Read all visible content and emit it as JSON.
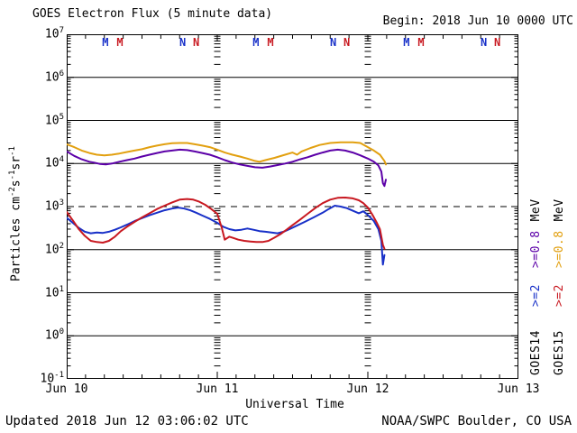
{
  "header": {
    "title": "GOES Electron Flux (5 minute data)",
    "begin": "Begin: 2018 Jun 10 0000 UTC"
  },
  "footer": {
    "updated": "Updated 2018 Jun 12 03:06:02 UTC",
    "credit": "NOAA/SWPC Boulder, CO USA"
  },
  "colors": {
    "goes14_08": "#5C00A8",
    "goes15_08": "#E2A010",
    "goes14_2": "#1830C8",
    "goes15_2": "#C81820",
    "frame": "#000000",
    "background": "#FFFFFF"
  },
  "y_axis": {
    "base": "10",
    "exponents": [
      "7",
      "6",
      "5",
      "4",
      "3",
      "2",
      "1",
      "0",
      "-1"
    ],
    "unit_segments": [
      {
        "text": "Particles cm"
      },
      {
        "text": "-2",
        "sup": true
      },
      {
        "text": "s"
      },
      {
        "text": "-1",
        "sup": true
      },
      {
        "text": "sr"
      },
      {
        "text": "-1",
        "sup": true
      }
    ]
  },
  "x_axis": {
    "label": "Universal Time",
    "ticks": [
      "Jun 10",
      "Jun 11",
      "Jun 12",
      "Jun 13"
    ]
  },
  "right_legend": {
    "columns": [
      {
        "satellite": "GOES14",
        "thresholds": [
          {
            "label": ">=2",
            "color_key": "goes14_2"
          },
          {
            "label": ">=0.8",
            "color_key": "goes14_08"
          }
        ],
        "unit": "MeV"
      },
      {
        "satellite": "GOES15",
        "thresholds": [
          {
            "label": ">=2",
            "color_key": "goes15_2"
          },
          {
            "label": ">=0.8",
            "color_key": "goes15_08"
          }
        ],
        "unit": "MeV"
      }
    ]
  },
  "local_time_markers": {
    "midnight_letter": "M",
    "noon_letter": "N",
    "items": [
      {
        "letter": "M",
        "color_key": "goes14_2",
        "day": 0.257
      },
      {
        "letter": "M",
        "color_key": "goes15_2",
        "day": 0.353
      },
      {
        "letter": "N",
        "color_key": "goes14_2",
        "day": 0.77
      },
      {
        "letter": "N",
        "color_key": "goes15_2",
        "day": 0.86
      },
      {
        "letter": "M",
        "color_key": "goes14_2",
        "day": 1.257
      },
      {
        "letter": "M",
        "color_key": "goes15_2",
        "day": 1.353
      },
      {
        "letter": "N",
        "color_key": "goes14_2",
        "day": 1.77
      },
      {
        "letter": "N",
        "color_key": "goes15_2",
        "day": 1.86
      },
      {
        "letter": "M",
        "color_key": "goes14_2",
        "day": 2.257
      },
      {
        "letter": "M",
        "color_key": "goes15_2",
        "day": 2.353
      },
      {
        "letter": "N",
        "color_key": "goes14_2",
        "day": 2.77
      },
      {
        "letter": "N",
        "color_key": "goes15_2",
        "day": 2.86
      }
    ]
  },
  "chart_data": {
    "type": "line",
    "title": "GOES Electron Flux (5 minute data)",
    "xlabel": "Universal Time",
    "ylabel": "Particles cm^-2 s^-1 sr^-1",
    "y_scale": "log",
    "ylim": [
      0.1,
      10000000
    ],
    "xlim_days": [
      0,
      3
    ],
    "x_origin": "2018 Jun 10 0000 UTC",
    "x_tick_labels": [
      "Jun 10",
      "Jun 11",
      "Jun 12",
      "Jun 13"
    ],
    "grid": "solid horizontal lines each decade; dashed line at 1e3; minor log tick columns at day boundaries",
    "threshold_dashed_line": 1000,
    "series": [
      {
        "name": "GOES15 >=0.8 MeV",
        "satellite": "GOES15",
        "energy": ">=0.8 MeV",
        "color_key": "goes15_08",
        "points": [
          [
            0,
            28000
          ],
          [
            0.05,
            24000
          ],
          [
            0.1,
            20000
          ],
          [
            0.15,
            17500
          ],
          [
            0.2,
            16000
          ],
          [
            0.25,
            15500
          ],
          [
            0.3,
            16000
          ],
          [
            0.35,
            17000
          ],
          [
            0.4,
            18500
          ],
          [
            0.45,
            20000
          ],
          [
            0.5,
            21500
          ],
          [
            0.55,
            24000
          ],
          [
            0.6,
            26000
          ],
          [
            0.65,
            28000
          ],
          [
            0.7,
            29500
          ],
          [
            0.75,
            30000
          ],
          [
            0.8,
            30000
          ],
          [
            0.85,
            28000
          ],
          [
            0.9,
            26000
          ],
          [
            0.95,
            24000
          ],
          [
            1,
            21000
          ],
          [
            1.05,
            18000
          ],
          [
            1.1,
            16000
          ],
          [
            1.15,
            14500
          ],
          [
            1.2,
            13000
          ],
          [
            1.25,
            11500
          ],
          [
            1.28,
            11000
          ],
          [
            1.32,
            12000
          ],
          [
            1.38,
            13500
          ],
          [
            1.45,
            16000
          ],
          [
            1.5,
            18000
          ],
          [
            1.53,
            16000
          ],
          [
            1.56,
            19000
          ],
          [
            1.62,
            23000
          ],
          [
            1.68,
            27000
          ],
          [
            1.75,
            30000
          ],
          [
            1.82,
            31000
          ],
          [
            1.9,
            31000
          ],
          [
            1.95,
            30000
          ],
          [
            2,
            24000
          ],
          [
            2.04,
            20000
          ],
          [
            2.08,
            16000
          ],
          [
            2.11,
            11500
          ],
          [
            2.12,
            9500
          ]
        ]
      },
      {
        "name": "GOES14 >=0.8 MeV",
        "satellite": "GOES14",
        "energy": ">=0.8 MeV",
        "color_key": "goes14_08",
        "points": [
          [
            0,
            19000
          ],
          [
            0.05,
            15000
          ],
          [
            0.1,
            12500
          ],
          [
            0.15,
            11000
          ],
          [
            0.18,
            10500
          ],
          [
            0.22,
            9800
          ],
          [
            0.26,
            9500
          ],
          [
            0.3,
            10000
          ],
          [
            0.35,
            11000
          ],
          [
            0.4,
            12000
          ],
          [
            0.45,
            13000
          ],
          [
            0.5,
            14500
          ],
          [
            0.55,
            16000
          ],
          [
            0.6,
            17500
          ],
          [
            0.65,
            19000
          ],
          [
            0.7,
            20000
          ],
          [
            0.75,
            21000
          ],
          [
            0.8,
            20500
          ],
          [
            0.85,
            19000
          ],
          [
            0.9,
            17500
          ],
          [
            0.95,
            16000
          ],
          [
            1,
            14000
          ],
          [
            1.05,
            12000
          ],
          [
            1.1,
            10500
          ],
          [
            1.15,
            9500
          ],
          [
            1.2,
            8800
          ],
          [
            1.25,
            8200
          ],
          [
            1.3,
            8000
          ],
          [
            1.35,
            8500
          ],
          [
            1.4,
            9200
          ],
          [
            1.45,
            10000
          ],
          [
            1.5,
            11000
          ],
          [
            1.55,
            12500
          ],
          [
            1.6,
            14000
          ],
          [
            1.65,
            16000
          ],
          [
            1.7,
            18000
          ],
          [
            1.75,
            20000
          ],
          [
            1.8,
            21000
          ],
          [
            1.85,
            20000
          ],
          [
            1.9,
            18000
          ],
          [
            1.95,
            15500
          ],
          [
            2,
            13000
          ],
          [
            2.04,
            11000
          ],
          [
            2.07,
            9000
          ],
          [
            2.09,
            6500
          ],
          [
            2.1,
            3500
          ],
          [
            2.11,
            3000
          ],
          [
            2.12,
            4200
          ]
        ]
      },
      {
        "name": "GOES14 >=2 MeV",
        "satellite": "GOES14",
        "energy": ">=2 MeV",
        "color_key": "goes14_2",
        "points": [
          [
            0,
            550
          ],
          [
            0.04,
            420
          ],
          [
            0.08,
            320
          ],
          [
            0.12,
            260
          ],
          [
            0.16,
            240
          ],
          [
            0.2,
            250
          ],
          [
            0.24,
            245
          ],
          [
            0.28,
            260
          ],
          [
            0.32,
            290
          ],
          [
            0.36,
            330
          ],
          [
            0.4,
            380
          ],
          [
            0.45,
            460
          ],
          [
            0.5,
            540
          ],
          [
            0.55,
            630
          ],
          [
            0.6,
            720
          ],
          [
            0.65,
            820
          ],
          [
            0.7,
            900
          ],
          [
            0.74,
            950
          ],
          [
            0.78,
            900
          ],
          [
            0.82,
            820
          ],
          [
            0.86,
            720
          ],
          [
            0.9,
            620
          ],
          [
            0.95,
            520
          ],
          [
            1,
            420
          ],
          [
            1.04,
            340
          ],
          [
            1.08,
            300
          ],
          [
            1.12,
            280
          ],
          [
            1.16,
            290
          ],
          [
            1.2,
            310
          ],
          [
            1.24,
            290
          ],
          [
            1.28,
            270
          ],
          [
            1.32,
            260
          ],
          [
            1.36,
            250
          ],
          [
            1.4,
            240
          ],
          [
            1.44,
            260
          ],
          [
            1.48,
            300
          ],
          [
            1.52,
            350
          ],
          [
            1.58,
            440
          ],
          [
            1.64,
            560
          ],
          [
            1.7,
            720
          ],
          [
            1.74,
            880
          ],
          [
            1.78,
            1050
          ],
          [
            1.82,
            1000
          ],
          [
            1.86,
            920
          ],
          [
            1.9,
            800
          ],
          [
            1.94,
            700
          ],
          [
            1.97,
            780
          ],
          [
            2,
            640
          ],
          [
            2.04,
            460
          ],
          [
            2.07,
            300
          ],
          [
            2.09,
            160
          ],
          [
            2.1,
            45
          ],
          [
            2.11,
            75
          ]
        ]
      },
      {
        "name": "GOES15 >=2 MeV",
        "satellite": "GOES15",
        "energy": ">=2 MeV",
        "color_key": "goes15_2",
        "points": [
          [
            0,
            750
          ],
          [
            0.04,
            480
          ],
          [
            0.08,
            300
          ],
          [
            0.12,
            210
          ],
          [
            0.16,
            160
          ],
          [
            0.2,
            150
          ],
          [
            0.24,
            145
          ],
          [
            0.28,
            160
          ],
          [
            0.32,
            200
          ],
          [
            0.36,
            270
          ],
          [
            0.4,
            340
          ],
          [
            0.45,
            440
          ],
          [
            0.5,
            560
          ],
          [
            0.55,
            700
          ],
          [
            0.6,
            880
          ],
          [
            0.65,
            1050
          ],
          [
            0.7,
            1250
          ],
          [
            0.75,
            1450
          ],
          [
            0.8,
            1500
          ],
          [
            0.84,
            1450
          ],
          [
            0.88,
            1300
          ],
          [
            0.92,
            1100
          ],
          [
            0.96,
            880
          ],
          [
            1,
            680
          ],
          [
            1.03,
            320
          ],
          [
            1.05,
            170
          ],
          [
            1.08,
            200
          ],
          [
            1.1,
            190
          ],
          [
            1.14,
            170
          ],
          [
            1.18,
            160
          ],
          [
            1.22,
            155
          ],
          [
            1.26,
            150
          ],
          [
            1.3,
            150
          ],
          [
            1.34,
            160
          ],
          [
            1.38,
            190
          ],
          [
            1.42,
            230
          ],
          [
            1.46,
            290
          ],
          [
            1.5,
            370
          ],
          [
            1.55,
            500
          ],
          [
            1.6,
            680
          ],
          [
            1.65,
            920
          ],
          [
            1.7,
            1200
          ],
          [
            1.75,
            1450
          ],
          [
            1.8,
            1600
          ],
          [
            1.85,
            1620
          ],
          [
            1.9,
            1550
          ],
          [
            1.94,
            1400
          ],
          [
            1.97,
            1200
          ],
          [
            2,
            950
          ],
          [
            2.03,
            650
          ],
          [
            2.06,
            420
          ],
          [
            2.08,
            300
          ],
          [
            2.1,
            130
          ],
          [
            2.11,
            105
          ]
        ]
      }
    ]
  }
}
